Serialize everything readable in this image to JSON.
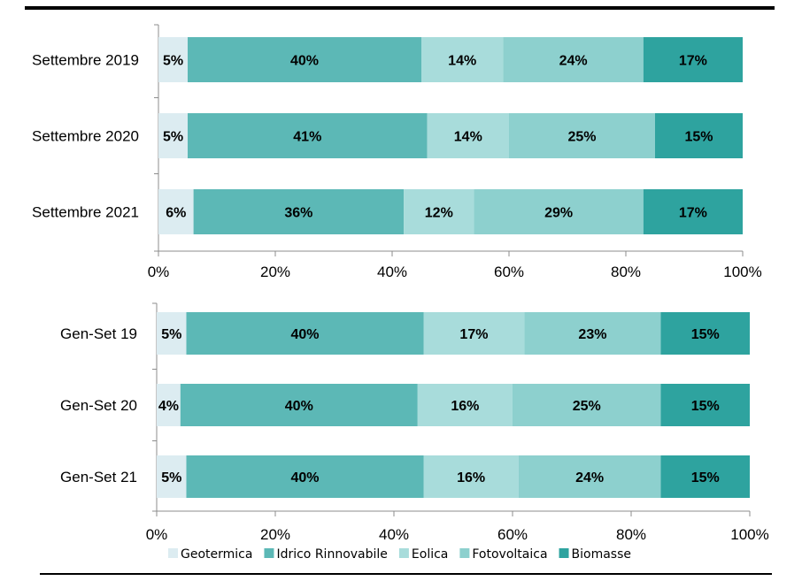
{
  "chart_data": [
    {
      "type": "bar",
      "orientation": "horizontal",
      "stacked": "percent",
      "categories": [
        "Settembre 2019",
        "Settembre 2020",
        "Settembre 2021"
      ],
      "series": [
        {
          "name": "Geotermica",
          "values": [
            5,
            5,
            6
          ],
          "color": "#dcecf1"
        },
        {
          "name": "Idrico Rinnovabile",
          "values": [
            40,
            41,
            36
          ],
          "color": "#5cb8b6"
        },
        {
          "name": "Eolica",
          "values": [
            14,
            14,
            12
          ],
          "color": "#a8dcdb"
        },
        {
          "name": "Fotovoltaica",
          "values": [
            24,
            25,
            29
          ],
          "color": "#8dd0ce"
        },
        {
          "name": "Biomasse",
          "values": [
            17,
            15,
            17
          ],
          "color": "#2ea39f"
        }
      ],
      "xlim": [
        0,
        100
      ],
      "x_ticks": [
        "0%",
        "20%",
        "40%",
        "60%",
        "80%",
        "100%"
      ],
      "grid": false
    },
    {
      "type": "bar",
      "orientation": "horizontal",
      "stacked": "percent",
      "categories": [
        "Gen-Set 19",
        "Gen-Set 20",
        "Gen-Set 21"
      ],
      "series": [
        {
          "name": "Geotermica",
          "values": [
            5,
            4,
            5
          ],
          "color": "#dcecf1"
        },
        {
          "name": "Idrico Rinnovabile",
          "values": [
            40,
            40,
            40
          ],
          "color": "#5cb8b6"
        },
        {
          "name": "Eolica",
          "values": [
            17,
            16,
            16
          ],
          "color": "#a8dcdb"
        },
        {
          "name": "Fotovoltaica",
          "values": [
            23,
            25,
            24
          ],
          "color": "#8dd0ce"
        },
        {
          "name": "Biomasse",
          "values": [
            15,
            15,
            15
          ],
          "color": "#2ea39f"
        }
      ],
      "xlim": [
        0,
        100
      ],
      "x_ticks": [
        "0%",
        "20%",
        "40%",
        "60%",
        "80%",
        "100%"
      ],
      "grid": false
    }
  ],
  "legend": {
    "placement": "bottom",
    "items": [
      {
        "label": "Geotermica",
        "color": "#dcecf1"
      },
      {
        "label": "Idrico Rinnovabile",
        "color": "#5cb8b6"
      },
      {
        "label": "Eolica",
        "color": "#a8dcdb"
      },
      {
        "label": "Fotovoltaica",
        "color": "#8dd0ce"
      },
      {
        "label": "Biomasse",
        "color": "#2ea39f"
      }
    ]
  }
}
